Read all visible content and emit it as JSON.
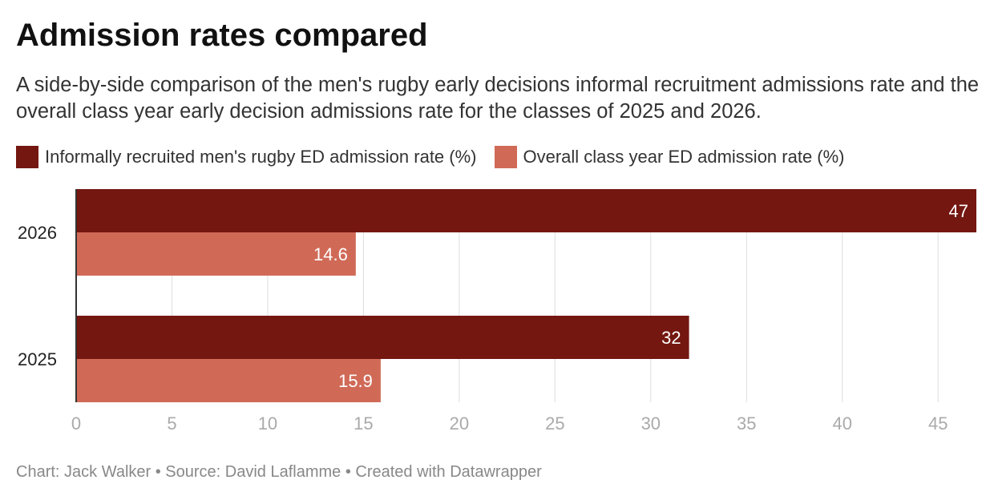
{
  "title": "Admission rates compared",
  "subtitle": "A side-by-side comparison of the men's rugby early decisions informal recruitment admissions rate and the overall class year early decision admissions rate for the classes of 2025 and 2026.",
  "legend": [
    {
      "label": "Informally recruited men's rugby ED admission rate (%)",
      "color": "#741711"
    },
    {
      "label": "Overall class year ED admission rate (%)",
      "color": "#d06a57"
    }
  ],
  "chart_data": {
    "type": "bar",
    "orientation": "horizontal",
    "grouped": true,
    "categories": [
      "2026",
      "2025"
    ],
    "series": [
      {
        "name": "Informally recruited men's rugby ED admission rate (%)",
        "color": "#741711",
        "values": [
          47,
          32
        ],
        "labels": [
          "47",
          "32"
        ]
      },
      {
        "name": "Overall class year ED admission rate (%)",
        "color": "#d06a57",
        "values": [
          14.6,
          15.9
        ],
        "labels": [
          "14.6",
          "15.9"
        ]
      }
    ],
    "xlim": [
      0,
      47
    ],
    "xticks": [
      0,
      5,
      10,
      15,
      20,
      25,
      30,
      35,
      40,
      45
    ],
    "grid": true,
    "legend_position": "top-left"
  },
  "footer": "Chart: Jack Walker • Source: David Laflamme • Created with Datawrapper"
}
